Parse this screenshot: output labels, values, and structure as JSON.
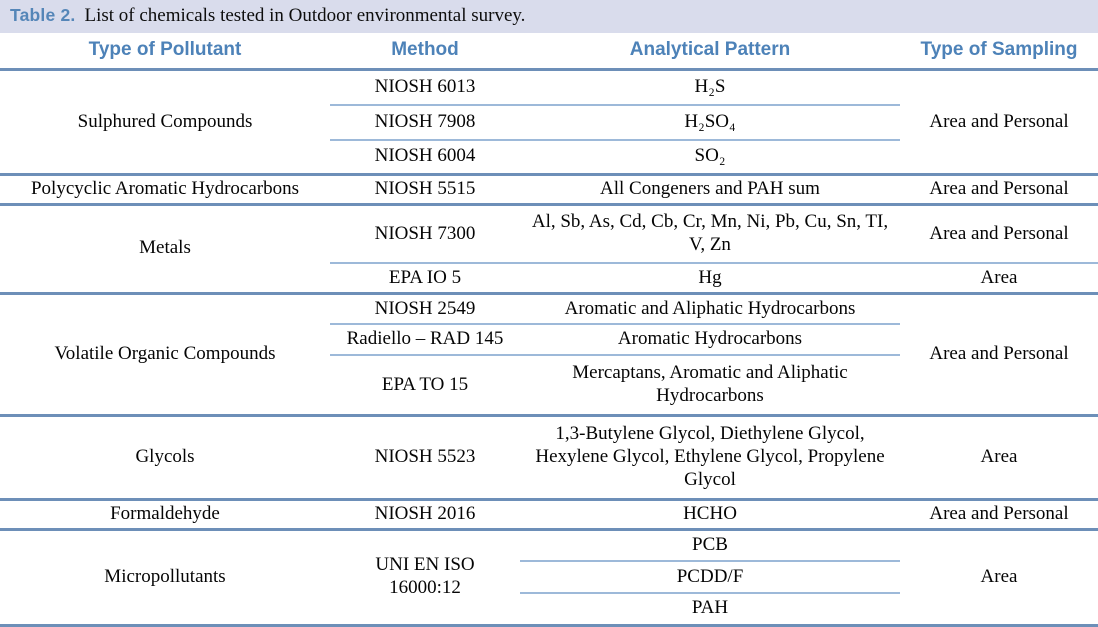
{
  "title": {
    "label": "Table 2.",
    "text": "List of chemicals tested in Outdoor environmental survey."
  },
  "columns": [
    "Type of Pollutant",
    "Method",
    "Analytical Pattern",
    "Type of Sampling"
  ],
  "sections": [
    {
      "pollutant": "Sulphured Compounds",
      "sampling": "Area and Personal",
      "rows": [
        {
          "method": "NIOSH 6013",
          "pattern": "H₂S"
        },
        {
          "method": "NIOSH 7908",
          "pattern": "H₂SO₄"
        },
        {
          "method": "NIOSH 6004",
          "pattern": "SO₂"
        }
      ]
    },
    {
      "pollutant": "Polycyclic Aromatic Hydrocarbons",
      "sampling": "Area and Personal",
      "rows": [
        {
          "method": "NIOSH 5515",
          "pattern": "All Congeners and PAH sum"
        }
      ]
    },
    {
      "pollutant": "Metals",
      "rows": [
        {
          "method": "NIOSH 7300",
          "pattern": "Al, Sb, As, Cd, Cb, Cr, Mn, Ni, Pb, Cu, Sn, TI, V, Zn",
          "sampling": "Area and Personal"
        },
        {
          "method": "EPA IO 5",
          "pattern": "Hg",
          "sampling": "Area"
        }
      ]
    },
    {
      "pollutant": "Volatile Organic Compounds",
      "sampling": "Area and Personal",
      "rows": [
        {
          "method": "NIOSH 2549",
          "pattern": "Aromatic and Aliphatic Hydrocarbons"
        },
        {
          "method": "Radiello – RAD 145",
          "pattern": "Aromatic Hydrocarbons"
        },
        {
          "method": "EPA TO 15",
          "pattern": "Mercaptans, Aromatic and Aliphatic Hydrocarbons"
        }
      ]
    },
    {
      "pollutant": "Glycols",
      "sampling": "Area",
      "rows": [
        {
          "method": "NIOSH 5523",
          "pattern": "1,3-Butylene Glycol, Diethylene Glycol, Hexylene Glycol, Ethylene Glycol, Propylene Glycol"
        }
      ]
    },
    {
      "pollutant": "Formaldehyde",
      "sampling": "Area and Personal",
      "rows": [
        {
          "method": "NIOSH 2016",
          "pattern": "HCHO"
        }
      ]
    },
    {
      "pollutant": "Micropollutants",
      "method": "UNI EN ISO 16000:12",
      "sampling": "Area",
      "rows": [
        {
          "pattern": "PCB"
        },
        {
          "pattern": "PCDD/F"
        },
        {
          "pattern": "PAH"
        }
      ]
    }
  ],
  "colors": {
    "title_bar_background": "#d9dcec",
    "title_label_blue": "#5586b8",
    "header_text_blue": "#4d82b8",
    "border_major_blue": "#6d8fb8",
    "border_minor_blue": "#9db9d9"
  }
}
